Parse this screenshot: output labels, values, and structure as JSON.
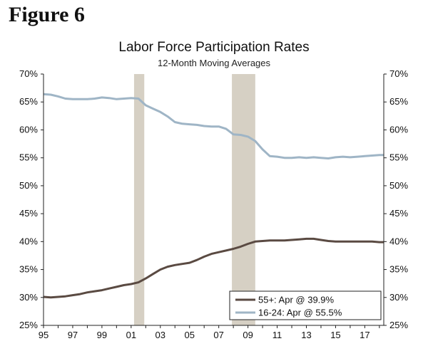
{
  "figure_label": "Figure 6",
  "chart_data": {
    "type": "line",
    "title": "Labor Force Participation Rates",
    "subtitle": "12-Month Moving Averages",
    "xlabel": "",
    "ylabel": "",
    "x_range": [
      1995,
      2018.3
    ],
    "ylim": [
      25,
      70
    ],
    "y_ticks": [
      25,
      30,
      35,
      40,
      45,
      50,
      55,
      60,
      65,
      70
    ],
    "y_tick_labels": [
      "25%",
      "30%",
      "35%",
      "40%",
      "45%",
      "50%",
      "55%",
      "60%",
      "65%",
      "70%"
    ],
    "x_ticks": [
      1995,
      1997,
      1999,
      2001,
      2003,
      2005,
      2007,
      2009,
      2011,
      2013,
      2015,
      2017
    ],
    "x_tick_labels": [
      "95",
      "97",
      "99",
      "01",
      "03",
      "05",
      "07",
      "09",
      "11",
      "13",
      "15",
      "17"
    ],
    "grid": false,
    "legend_position": "bottom-right",
    "recessions": [
      {
        "start": 2001.2,
        "end": 2001.9
      },
      {
        "start": 2007.9,
        "end": 2009.5
      }
    ],
    "colors": {
      "series_55plus": "#5a4a42",
      "series_16_24": "#9fb5c6",
      "recession": "#d6d0c4",
      "axis": "#222222"
    },
    "series": [
      {
        "name": "55+: Apr @ 39.9%",
        "color": "#5a4a42",
        "points": [
          [
            1995.0,
            30.1
          ],
          [
            1995.5,
            30.0
          ],
          [
            1996.0,
            30.1
          ],
          [
            1996.5,
            30.2
          ],
          [
            1997.0,
            30.4
          ],
          [
            1997.5,
            30.6
          ],
          [
            1998.0,
            30.9
          ],
          [
            1998.5,
            31.1
          ],
          [
            1999.0,
            31.3
          ],
          [
            1999.5,
            31.6
          ],
          [
            2000.0,
            31.9
          ],
          [
            2000.5,
            32.2
          ],
          [
            2001.0,
            32.4
          ],
          [
            2001.5,
            32.7
          ],
          [
            2002.0,
            33.4
          ],
          [
            2002.5,
            34.2
          ],
          [
            2003.0,
            35.0
          ],
          [
            2003.5,
            35.5
          ],
          [
            2004.0,
            35.8
          ],
          [
            2004.5,
            36.0
          ],
          [
            2005.0,
            36.2
          ],
          [
            2005.5,
            36.7
          ],
          [
            2006.0,
            37.3
          ],
          [
            2006.5,
            37.8
          ],
          [
            2007.0,
            38.1
          ],
          [
            2007.5,
            38.4
          ],
          [
            2008.0,
            38.7
          ],
          [
            2008.5,
            39.1
          ],
          [
            2009.0,
            39.6
          ],
          [
            2009.5,
            40.0
          ],
          [
            2010.0,
            40.1
          ],
          [
            2010.5,
            40.2
          ],
          [
            2011.0,
            40.2
          ],
          [
            2011.5,
            40.2
          ],
          [
            2012.0,
            40.3
          ],
          [
            2012.5,
            40.4
          ],
          [
            2013.0,
            40.5
          ],
          [
            2013.5,
            40.5
          ],
          [
            2014.0,
            40.3
          ],
          [
            2014.5,
            40.1
          ],
          [
            2015.0,
            40.0
          ],
          [
            2015.5,
            40.0
          ],
          [
            2016.0,
            40.0
          ],
          [
            2016.5,
            40.0
          ],
          [
            2017.0,
            40.0
          ],
          [
            2017.5,
            40.0
          ],
          [
            2018.0,
            39.9
          ],
          [
            2018.3,
            39.9
          ]
        ]
      },
      {
        "name": "16-24: Apr @ 55.5%",
        "color": "#9fb5c6",
        "points": [
          [
            1995.0,
            66.4
          ],
          [
            1995.5,
            66.3
          ],
          [
            1996.0,
            66.0
          ],
          [
            1996.5,
            65.6
          ],
          [
            1997.0,
            65.5
          ],
          [
            1997.5,
            65.5
          ],
          [
            1998.0,
            65.5
          ],
          [
            1998.5,
            65.6
          ],
          [
            1999.0,
            65.8
          ],
          [
            1999.5,
            65.7
          ],
          [
            2000.0,
            65.5
          ],
          [
            2000.5,
            65.6
          ],
          [
            2001.0,
            65.7
          ],
          [
            2001.5,
            65.6
          ],
          [
            2002.0,
            64.4
          ],
          [
            2002.5,
            63.8
          ],
          [
            2003.0,
            63.2
          ],
          [
            2003.5,
            62.4
          ],
          [
            2004.0,
            61.4
          ],
          [
            2004.5,
            61.1
          ],
          [
            2005.0,
            61.0
          ],
          [
            2005.5,
            60.9
          ],
          [
            2006.0,
            60.7
          ],
          [
            2006.5,
            60.6
          ],
          [
            2007.0,
            60.6
          ],
          [
            2007.5,
            60.2
          ],
          [
            2008.0,
            59.2
          ],
          [
            2008.5,
            59.1
          ],
          [
            2009.0,
            58.8
          ],
          [
            2009.5,
            58.0
          ],
          [
            2010.0,
            56.5
          ],
          [
            2010.5,
            55.3
          ],
          [
            2011.0,
            55.2
          ],
          [
            2011.5,
            55.0
          ],
          [
            2012.0,
            55.0
          ],
          [
            2012.5,
            55.1
          ],
          [
            2013.0,
            55.0
          ],
          [
            2013.5,
            55.1
          ],
          [
            2014.0,
            55.0
          ],
          [
            2014.5,
            54.9
          ],
          [
            2015.0,
            55.1
          ],
          [
            2015.5,
            55.2
          ],
          [
            2016.0,
            55.1
          ],
          [
            2016.5,
            55.2
          ],
          [
            2017.0,
            55.3
          ],
          [
            2017.5,
            55.4
          ],
          [
            2018.0,
            55.5
          ],
          [
            2018.3,
            55.5
          ]
        ]
      }
    ]
  }
}
